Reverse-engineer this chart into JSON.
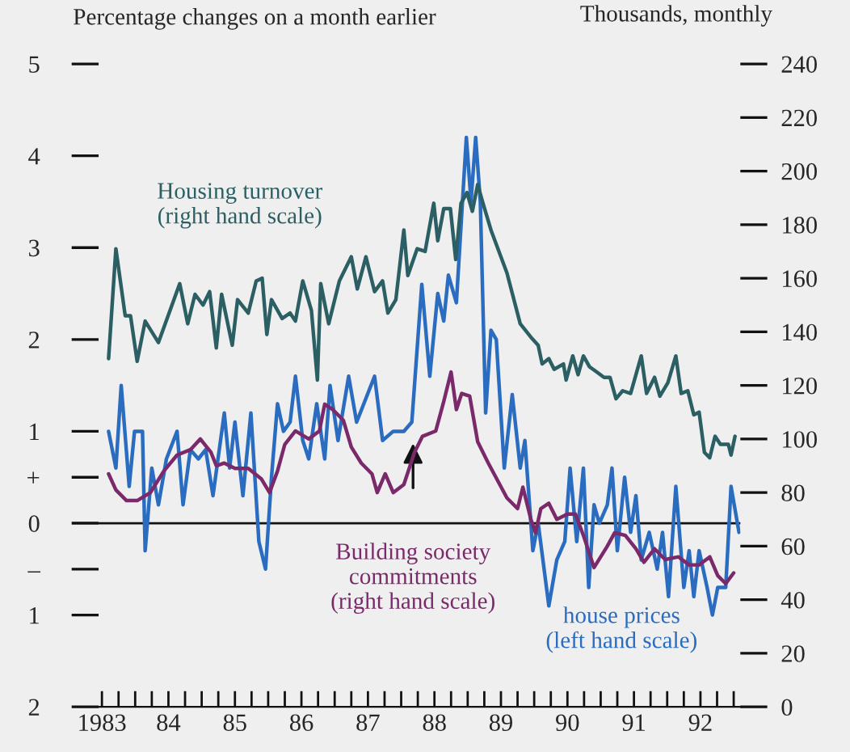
{
  "chart_data": {
    "type": "line",
    "ylabel": "Percentage changes on a month earlier",
    "y2label": "Thousands, monthly",
    "xlim": [
      1982.95,
      1992.6
    ],
    "xticks": [
      {
        "value": 1983,
        "label": "1983"
      },
      {
        "value": 1983.25,
        "label": null
      },
      {
        "value": 1983.5,
        "label": null
      },
      {
        "value": 1983.75,
        "label": null
      },
      {
        "value": 1984,
        "label": "84"
      },
      {
        "value": 1984.25,
        "label": null
      },
      {
        "value": 1984.5,
        "label": null
      },
      {
        "value": 1984.75,
        "label": null
      },
      {
        "value": 1985,
        "label": "85"
      },
      {
        "value": 1985.25,
        "label": null
      },
      {
        "value": 1985.5,
        "label": null
      },
      {
        "value": 1985.75,
        "label": null
      },
      {
        "value": 1986,
        "label": "86"
      },
      {
        "value": 1986.25,
        "label": null
      },
      {
        "value": 1986.5,
        "label": null
      },
      {
        "value": 1986.75,
        "label": null
      },
      {
        "value": 1987,
        "label": "87"
      },
      {
        "value": 1987.25,
        "label": null
      },
      {
        "value": 1987.5,
        "label": null
      },
      {
        "value": 1987.75,
        "label": null
      },
      {
        "value": 1988,
        "label": "88"
      },
      {
        "value": 1988.25,
        "label": null
      },
      {
        "value": 1988.5,
        "label": null
      },
      {
        "value": 1988.75,
        "label": null
      },
      {
        "value": 1989,
        "label": "89"
      },
      {
        "value": 1989.25,
        "label": null
      },
      {
        "value": 1989.5,
        "label": null
      },
      {
        "value": 1989.75,
        "label": null
      },
      {
        "value": 1990,
        "label": "90"
      },
      {
        "value": 1990.25,
        "label": null
      },
      {
        "value": 1990.5,
        "label": null
      },
      {
        "value": 1990.75,
        "label": null
      },
      {
        "value": 1991,
        "label": "91"
      },
      {
        "value": 1991.25,
        "label": null
      },
      {
        "value": 1991.5,
        "label": null
      },
      {
        "value": 1991.75,
        "label": null
      },
      {
        "value": 1992,
        "label": "92"
      },
      {
        "value": 1992.25,
        "label": null
      },
      {
        "value": 1992.5,
        "label": null
      }
    ],
    "ylim": [
      -2,
      5
    ],
    "yticks": [
      {
        "value": -2,
        "label": "2"
      },
      {
        "value": -1,
        "label": "1"
      },
      {
        "value": -0.5,
        "label": "–"
      },
      0,
      {
        "value": 0.5,
        "label": "+"
      },
      1,
      2,
      3,
      4,
      5
    ],
    "y2lim": [
      0,
      240
    ],
    "y2ticks": [
      0,
      20,
      40,
      60,
      80,
      100,
      120,
      140,
      160,
      180,
      200,
      220,
      240
    ],
    "ref_lines": [
      {
        "axis": "y",
        "value": 0,
        "color": "#111111"
      }
    ],
    "series": [
      {
        "name": "Housing turnover\n(right hand scale)",
        "color": "#2b5f63",
        "axis": "y2",
        "x": [
          1983.1,
          1983.21,
          1983.35,
          1983.43,
          1983.53,
          1983.65,
          1983.85,
          1984.17,
          1984.29,
          1984.4,
          1984.52,
          1984.62,
          1984.72,
          1984.8,
          1984.96,
          1985.04,
          1985.2,
          1985.32,
          1985.41,
          1985.48,
          1985.55,
          1985.71,
          1985.83,
          1985.91,
          1986.02,
          1986.15,
          1986.24,
          1986.29,
          1986.41,
          1986.57,
          1986.75,
          1986.84,
          1986.97,
          1987.1,
          1987.22,
          1987.3,
          1987.42,
          1987.54,
          1987.6,
          1987.74,
          1987.86,
          1987.99,
          1988.05,
          1988.14,
          1988.24,
          1988.32,
          1988.4,
          1988.49,
          1988.57,
          1988.65,
          1988.73,
          1988.85,
          1989.09,
          1989.29,
          1989.45,
          1989.56,
          1989.62,
          1989.72,
          1989.8,
          1989.94,
          1989.98,
          1990.08,
          1990.16,
          1990.24,
          1990.33,
          1990.44,
          1990.55,
          1990.64,
          1990.73,
          1990.83,
          1990.95,
          1991.11,
          1991.19,
          1991.31,
          1991.39,
          1991.51,
          1991.63,
          1991.71,
          1991.81,
          1991.9,
          1991.98,
          1992.06,
          1992.14,
          1992.22,
          1992.3,
          1992.42,
          1992.46,
          1992.52
        ],
        "values": [
          130,
          171,
          146,
          146,
          129,
          144,
          136,
          158,
          143,
          154,
          150,
          155,
          134,
          154,
          135,
          152,
          147,
          159,
          160,
          139,
          152,
          145,
          147,
          144,
          159,
          148,
          122,
          158,
          143,
          159,
          168,
          156,
          168,
          155,
          159,
          147,
          152,
          178,
          161,
          171,
          170,
          188,
          174,
          186,
          186,
          167,
          188,
          192,
          185,
          195,
          188,
          178,
          162,
          143,
          138,
          135,
          128,
          130,
          126,
          128,
          122,
          131,
          124,
          131,
          127,
          125,
          123,
          123,
          115,
          118,
          117,
          131,
          117,
          123,
          116,
          121,
          131,
          117,
          118,
          109,
          110,
          95,
          93,
          101,
          98,
          98,
          94,
          101
        ]
      },
      {
        "name": "Building society\ncommitments\n(right hand scale)",
        "color": "#7a2a6a",
        "axis": "y2",
        "x": [
          1983.1,
          1983.21,
          1983.37,
          1983.53,
          1983.73,
          1983.93,
          1984.13,
          1984.33,
          1984.48,
          1984.64,
          1984.72,
          1984.84,
          1985.0,
          1985.2,
          1985.4,
          1985.52,
          1985.64,
          1985.75,
          1985.91,
          1986.11,
          1986.27,
          1986.35,
          1986.47,
          1986.63,
          1986.75,
          1986.9,
          1987.06,
          1987.14,
          1987.26,
          1987.38,
          1987.54,
          1987.7,
          1987.82,
          1988.02,
          1988.14,
          1988.25,
          1988.33,
          1988.41,
          1988.53,
          1988.65,
          1988.81,
          1989.09,
          1989.25,
          1989.33,
          1989.45,
          1989.52,
          1989.6,
          1989.72,
          1989.84,
          1990.0,
          1990.12,
          1990.24,
          1990.4,
          1990.6,
          1990.71,
          1990.87,
          1991.03,
          1991.15,
          1991.31,
          1991.47,
          1991.67,
          1991.83,
          1991.98,
          1992.14,
          1992.26,
          1992.38,
          1992.5
        ],
        "values": [
          87,
          81,
          77,
          77,
          80,
          88,
          94,
          96,
          100,
          95,
          90,
          91,
          89,
          89,
          85,
          80,
          88,
          98,
          103,
          100,
          103,
          113,
          111,
          107,
          97,
          91,
          87,
          80,
          87,
          80,
          83,
          95,
          101,
          103,
          114,
          125,
          111,
          117,
          116,
          99,
          91,
          78,
          74,
          82,
          70,
          65,
          74,
          76,
          70,
          72,
          72,
          64,
          52,
          60,
          65,
          64,
          59,
          54,
          59,
          55,
          56,
          53,
          53,
          56,
          49,
          46,
          50
        ]
      },
      {
        "name": "house prices\n(left hand scale)",
        "color": "#2a6cc0",
        "axis": "y",
        "x": [
          1983.1,
          1983.21,
          1983.29,
          1983.41,
          1983.49,
          1983.61,
          1983.65,
          1983.75,
          1983.85,
          1983.97,
          1984.13,
          1984.22,
          1984.33,
          1984.45,
          1984.56,
          1984.67,
          1984.84,
          1984.92,
          1985.0,
          1985.12,
          1985.24,
          1985.36,
          1985.46,
          1985.55,
          1985.64,
          1985.73,
          1985.83,
          1985.91,
          1986.02,
          1986.11,
          1986.23,
          1986.35,
          1986.43,
          1986.55,
          1986.71,
          1986.83,
          1987.1,
          1987.22,
          1987.38,
          1987.54,
          1987.66,
          1987.81,
          1987.93,
          1988.05,
          1988.14,
          1988.21,
          1988.33,
          1988.48,
          1988.55,
          1988.62,
          1988.69,
          1988.77,
          1988.85,
          1988.93,
          1989.05,
          1989.17,
          1989.29,
          1989.36,
          1989.48,
          1989.56,
          1989.72,
          1989.84,
          1989.96,
          1990.04,
          1990.14,
          1990.24,
          1990.32,
          1990.4,
          1990.48,
          1990.6,
          1990.67,
          1990.75,
          1990.86,
          1990.95,
          1991.03,
          1991.11,
          1991.23,
          1991.35,
          1991.43,
          1991.52,
          1991.63,
          1991.75,
          1991.83,
          1991.9,
          1991.98,
          1992.1,
          1992.18,
          1992.26,
          1992.38,
          1992.46,
          1992.58
        ],
        "values": [
          1.0,
          0.6,
          1.5,
          0.4,
          1.0,
          1.0,
          -0.3,
          0.6,
          0.2,
          0.7,
          1.0,
          0.2,
          0.8,
          0.7,
          0.8,
          0.3,
          1.2,
          0.6,
          1.1,
          0.3,
          1.2,
          -0.2,
          -0.5,
          0.5,
          1.3,
          1.0,
          1.1,
          1.6,
          0.9,
          0.7,
          1.3,
          0.7,
          1.5,
          0.9,
          1.6,
          1.1,
          1.6,
          0.9,
          1.0,
          1.0,
          1.1,
          2.6,
          1.6,
          2.5,
          2.2,
          2.7,
          2.4,
          4.2,
          3.5,
          4.2,
          3.5,
          1.2,
          2.1,
          2.0,
          0.6,
          1.4,
          0.6,
          0.9,
          -0.3,
          0.0,
          -0.9,
          -0.4,
          -0.2,
          0.6,
          -0.2,
          0.6,
          -0.7,
          0.2,
          0.0,
          0.2,
          0.6,
          -0.3,
          0.5,
          -0.1,
          0.3,
          -0.4,
          -0.1,
          -0.5,
          -0.1,
          -0.8,
          0.4,
          -0.7,
          -0.3,
          -0.8,
          -0.3,
          -0.7,
          -1.0,
          -0.7,
          -0.7,
          0.4,
          -0.1
        ]
      }
    ]
  }
}
